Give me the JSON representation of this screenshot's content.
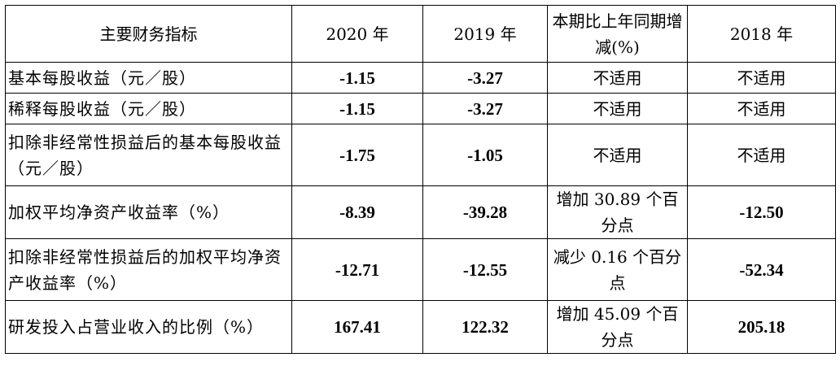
{
  "table": {
    "headers": [
      "主要财务指标",
      "2020 年",
      "2019 年",
      "本期比上年同期增减(%)",
      "2018 年"
    ],
    "rows": [
      {
        "name": "基本每股收益（元／股）",
        "y2020": "-1.15",
        "y2019": "-3.27",
        "change": "不适用",
        "y2018": "不适用"
      },
      {
        "name": "稀释每股收益（元／股）",
        "y2020": "-1.15",
        "y2019": "-3.27",
        "change": "不适用",
        "y2018": "不适用"
      },
      {
        "name": "扣除非经常性损益后的基本每股收益（元／股）",
        "y2020": "-1.75",
        "y2019": "-1.05",
        "change": "不适用",
        "y2018": "不适用"
      },
      {
        "name": "加权平均净资产收益率（%）",
        "y2020": "-8.39",
        "y2019": "-39.28",
        "change": "增加 30.89 个百分点",
        "y2018": "-12.50"
      },
      {
        "name": "扣除非经常性损益后的加权平均净资产收益率（%）",
        "y2020": "-12.71",
        "y2019": "-12.55",
        "change": "减少 0.16 个百分点",
        "y2018": "-52.34"
      },
      {
        "name": "研发投入占营业收入的比例（%）",
        "y2020": "167.41",
        "y2019": "122.32",
        "change": "增加 45.09 个百分点",
        "y2018": "205.18"
      }
    ]
  }
}
